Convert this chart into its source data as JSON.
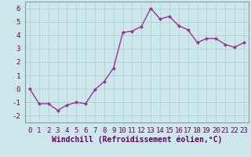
{
  "x": [
    0,
    1,
    2,
    3,
    4,
    5,
    6,
    7,
    8,
    9,
    10,
    11,
    12,
    13,
    14,
    15,
    16,
    17,
    18,
    19,
    20,
    21,
    22,
    23
  ],
  "y": [
    0.0,
    -1.1,
    -1.1,
    -1.6,
    -1.2,
    -1.0,
    -1.1,
    -0.05,
    0.55,
    1.55,
    4.2,
    4.3,
    4.65,
    6.0,
    5.2,
    5.4,
    4.7,
    4.4,
    3.45,
    3.75,
    3.75,
    3.3,
    3.1,
    3.45
  ],
  "line_color": "#993399",
  "marker": "D",
  "marker_size": 2,
  "line_width": 1.0,
  "bg_color": "#cce8ea",
  "grid_color": "#aacccc",
  "xlabel": "Windchill (Refroidissement éolien,°C)",
  "xlabel_fontsize": 7,
  "tick_fontsize": 6.5,
  "xlim": [
    -0.5,
    23.5
  ],
  "ylim": [
    -2.5,
    6.5
  ],
  "yticks": [
    -2,
    -1,
    0,
    1,
    2,
    3,
    4,
    5,
    6
  ],
  "xticks": [
    0,
    1,
    2,
    3,
    4,
    5,
    6,
    7,
    8,
    9,
    10,
    11,
    12,
    13,
    14,
    15,
    16,
    17,
    18,
    19,
    20,
    21,
    22,
    23
  ],
  "text_color": "#660066"
}
